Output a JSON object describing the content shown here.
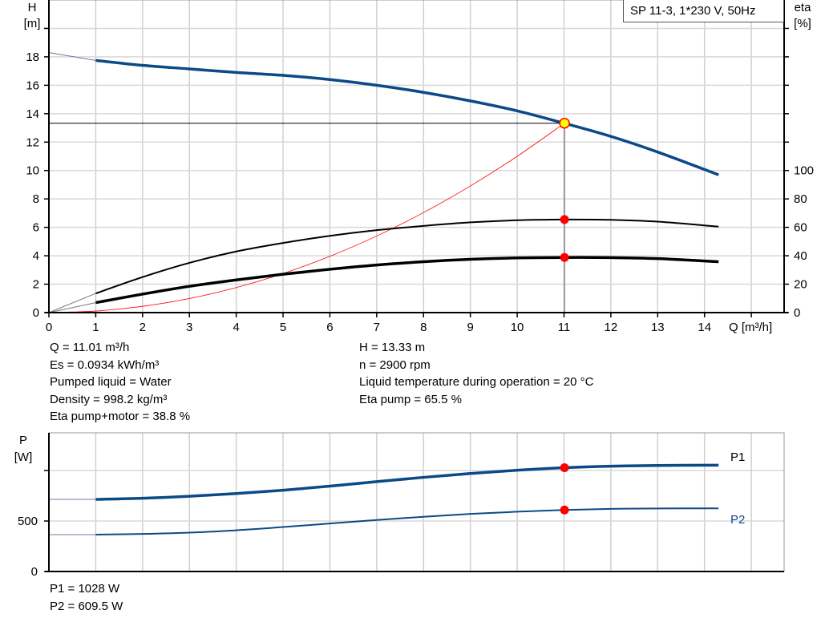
{
  "chart_data": [
    {
      "type": "line",
      "title": "SP 11-3, 1*230 V, 50Hz",
      "xlabel": "Q [m³/h]",
      "ylabel_left": [
        "H",
        "[m]"
      ],
      "ylabel_right": [
        "eta",
        "[%]"
      ],
      "xlim": [
        0,
        15.7
      ],
      "ylim_left": [
        0,
        22
      ],
      "ylim_right": [
        0,
        220
      ],
      "x_ticks": [
        "0",
        "1",
        "2",
        "3",
        "4",
        "5",
        "6",
        "7",
        "8",
        "9",
        "10",
        "11",
        "12",
        "13",
        "14"
      ],
      "y_ticks_left": [
        "0",
        "2",
        "4",
        "6",
        "8",
        "10",
        "12",
        "14",
        "16",
        "18"
      ],
      "y_ticks_right": [
        "0",
        "20",
        "40",
        "60",
        "80",
        "100"
      ],
      "grid": true,
      "colors": {
        "head": "#0b4a86",
        "efficiency": "#000000",
        "system": "#ff0000",
        "duty_point_fill": "#ffff00",
        "marker": "#ff0000"
      },
      "series": [
        {
          "key": "H",
          "axis": "left",
          "x": [
            0,
            1,
            2,
            3,
            4,
            5,
            6,
            7,
            8,
            9,
            10,
            11,
            12,
            13,
            14.3
          ],
          "y": [
            18.3,
            17.75,
            17.4,
            17.15,
            16.9,
            16.7,
            16.4,
            16.0,
            15.5,
            14.9,
            14.2,
            13.33,
            12.4,
            11.3,
            9.7
          ]
        },
        {
          "key": "eta_pump",
          "axis": "right",
          "x": [
            0,
            1,
            2,
            3,
            4,
            5,
            6,
            7,
            8,
            9,
            10,
            11,
            12,
            13,
            14.3
          ],
          "y": [
            0,
            13.5,
            25,
            35,
            43,
            49,
            54,
            58,
            61,
            63.5,
            65,
            65.5,
            65.3,
            64,
            60.5
          ]
        },
        {
          "key": "eta_pump_motor",
          "axis": "right",
          "x": [
            0,
            1,
            2,
            3,
            4,
            5,
            6,
            7,
            8,
            9,
            10,
            11,
            12,
            13,
            14.3
          ],
          "y": [
            0,
            7,
            13,
            18.5,
            23,
            27,
            30.5,
            33.5,
            35.8,
            37.5,
            38.5,
            38.8,
            38.7,
            38,
            35.8
          ]
        },
        {
          "key": "system_curve",
          "axis": "left",
          "x": [
            0,
            1,
            2,
            3,
            4,
            5,
            6,
            7,
            8,
            9,
            10,
            11.01
          ],
          "y": [
            0,
            0.11,
            0.44,
            0.99,
            1.76,
            2.75,
            3.96,
            5.39,
            7.04,
            8.91,
            11.0,
            13.33
          ]
        }
      ],
      "duty_point": {
        "Q": 11.01,
        "H": 13.33,
        "eta_pump": 65.5,
        "eta_pump_motor": 38.8
      }
    },
    {
      "type": "line",
      "ylabel": [
        "P",
        "[W]"
      ],
      "xlim": [
        0,
        15.7
      ],
      "ylim": [
        0,
        1373
      ],
      "y_ticks": [
        "0",
        "500"
      ],
      "grid": true,
      "series": [
        {
          "name": "P1",
          "x": [
            0,
            1,
            2,
            3,
            4,
            5,
            6,
            7,
            8,
            9,
            10,
            11,
            12,
            13,
            14.3
          ],
          "y": [
            714,
            714,
            725,
            745,
            772,
            805,
            845,
            890,
            932,
            970,
            1003,
            1028,
            1043,
            1050,
            1053
          ]
        },
        {
          "name": "P2",
          "x": [
            0,
            1,
            2,
            3,
            4,
            5,
            6,
            7,
            8,
            9,
            10,
            11,
            12,
            13,
            14.3
          ],
          "y": [
            365,
            365,
            372,
            385,
            408,
            440,
            475,
            510,
            542,
            570,
            592,
            609.5,
            620,
            624,
            625
          ]
        }
      ],
      "duty_point": {
        "P1": 1028,
        "P2": 609.5
      }
    }
  ],
  "info_left": [
    "Q = 11.01 m³/h",
    "Es = 0.0934 kWh/m³",
    "Pumped liquid = Water",
    "Density = 998.2 kg/m³",
    "Eta pump+motor = 38.8 %"
  ],
  "info_right": [
    "H = 13.33 m",
    "n = 2900 rpm",
    "Liquid temperature during operation = 20 °C",
    "Eta pump = 65.5 %"
  ],
  "power_info": [
    "P1 = 1028 W",
    "P2 = 609.5 W"
  ]
}
